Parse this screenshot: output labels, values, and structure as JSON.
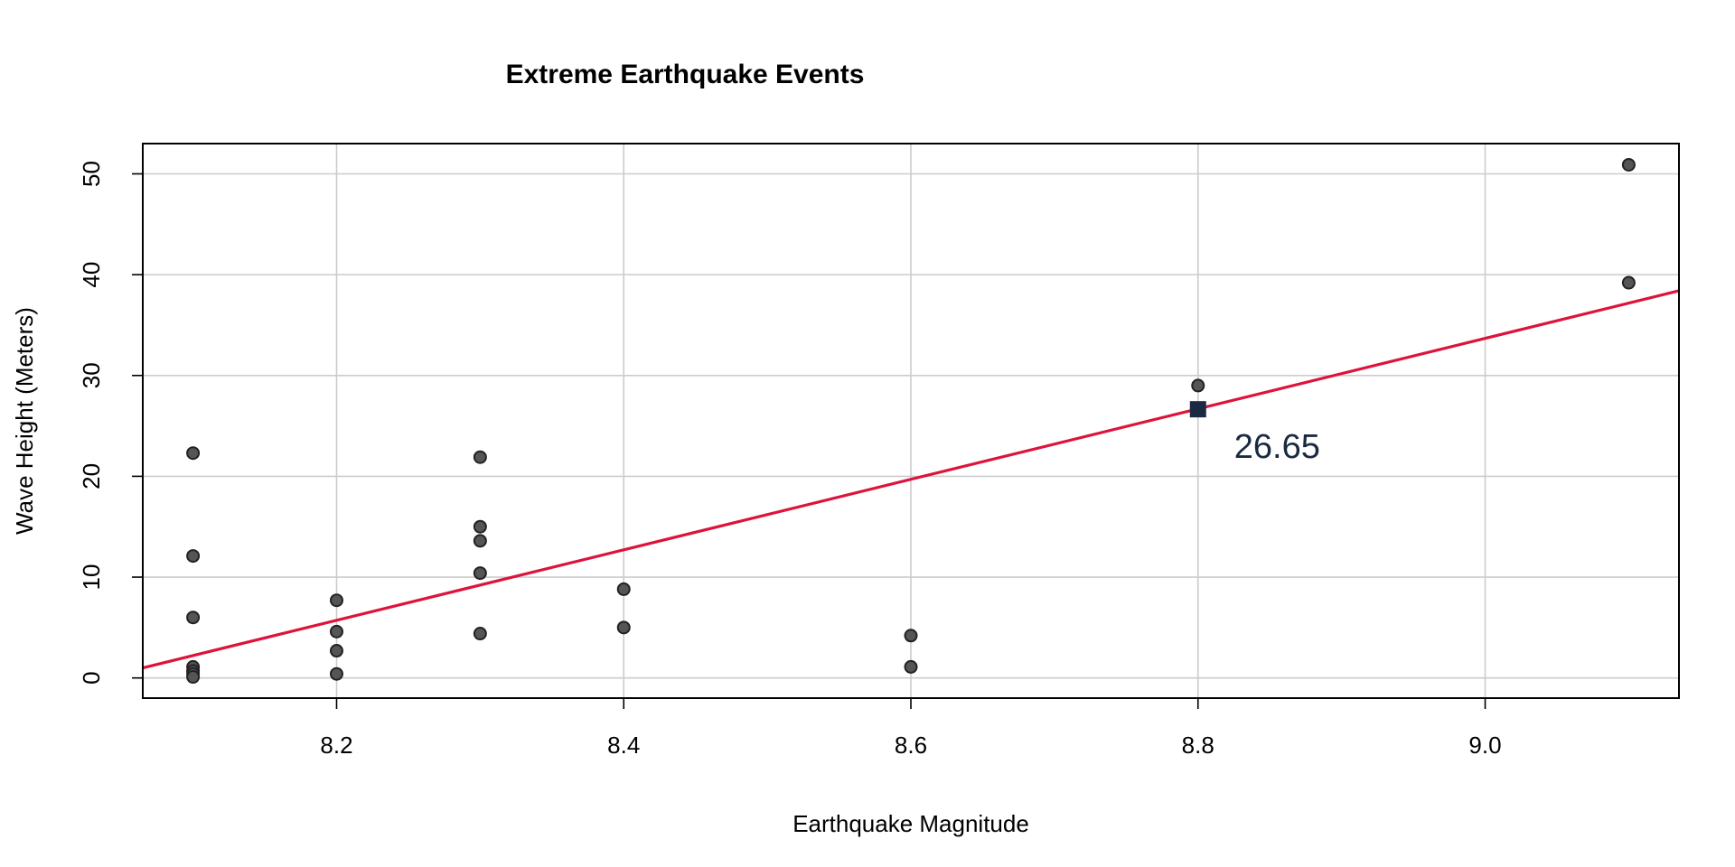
{
  "chart_data": {
    "type": "scatter",
    "title": "Extreme Earthquake Events",
    "xlabel": "Earthquake Magnitude",
    "ylabel": "Wave Height (Meters)",
    "xlim": [
      8.065,
      9.135
    ],
    "ylim": [
      -2,
      53
    ],
    "x_ticks": [
      8.2,
      8.4,
      8.6,
      8.8,
      9.0
    ],
    "x_tick_labels": [
      "8.2",
      "8.4",
      "8.6",
      "8.8",
      "9.0"
    ],
    "y_ticks": [
      0,
      10,
      20,
      30,
      40,
      50
    ],
    "y_tick_labels": [
      "0",
      "10",
      "20",
      "30",
      "40",
      "50"
    ],
    "grid": true,
    "points": [
      {
        "x": 8.1,
        "y": 22.3
      },
      {
        "x": 8.1,
        "y": 12.1
      },
      {
        "x": 8.1,
        "y": 6.0
      },
      {
        "x": 8.1,
        "y": 1.1
      },
      {
        "x": 8.1,
        "y": 0.7
      },
      {
        "x": 8.1,
        "y": 0.4
      },
      {
        "x": 8.1,
        "y": 0.1
      },
      {
        "x": 8.2,
        "y": 7.7
      },
      {
        "x": 8.2,
        "y": 4.6
      },
      {
        "x": 8.2,
        "y": 2.7
      },
      {
        "x": 8.2,
        "y": 0.4
      },
      {
        "x": 8.3,
        "y": 21.9
      },
      {
        "x": 8.3,
        "y": 15.0
      },
      {
        "x": 8.3,
        "y": 13.6
      },
      {
        "x": 8.3,
        "y": 10.4
      },
      {
        "x": 8.3,
        "y": 4.4
      },
      {
        "x": 8.4,
        "y": 8.8
      },
      {
        "x": 8.4,
        "y": 5.0
      },
      {
        "x": 8.6,
        "y": 4.2
      },
      {
        "x": 8.6,
        "y": 1.1
      },
      {
        "x": 8.8,
        "y": 29.0
      },
      {
        "x": 9.1,
        "y": 50.9
      },
      {
        "x": 9.1,
        "y": 39.2
      }
    ],
    "regression_line": {
      "x": [
        8.065,
        9.135
      ],
      "y": [
        1.0,
        38.4
      ],
      "color": "#DC143C"
    },
    "highlight": {
      "x": 8.8,
      "y": 26.65,
      "label": "26.65",
      "color": "#1B2A41"
    },
    "point_fill": "#555555",
    "point_stroke": "#222222",
    "grid_color": "#CCCCCC"
  }
}
